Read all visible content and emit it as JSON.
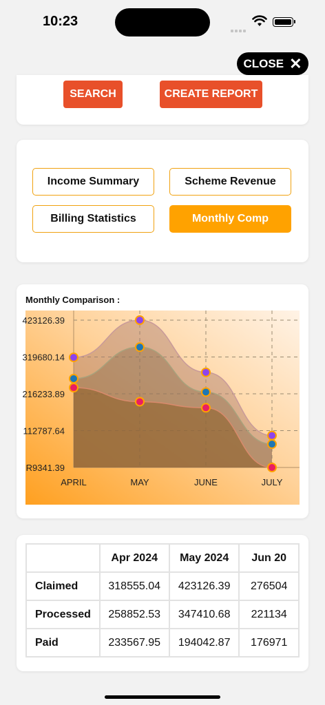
{
  "status_bar": {
    "time": "10:23"
  },
  "close_button": {
    "label": "CLOSE"
  },
  "actions": {
    "search_label": "SEARCH",
    "create_report_label": "CREATE REPORT"
  },
  "tabs": [
    {
      "label": "Income Summary",
      "active": false
    },
    {
      "label": "Scheme Revenue",
      "active": false
    },
    {
      "label": "Billing Statistics",
      "active": false
    },
    {
      "label": "Monthly Comp",
      "active": true
    }
  ],
  "chart_title": "Monthly Comparison :",
  "colors": {
    "accent": "#ffa200",
    "button": "#e8502a",
    "claimed": "#8e44ec",
    "processed": "#1f77b4",
    "paid": "#e91e63"
  },
  "chart_data": {
    "type": "area",
    "categories": [
      "APRIL",
      "MAY",
      "JUNE",
      "JULY"
    ],
    "y_ticks": [
      "423126.39",
      "319680.14",
      "216233.89",
      "112787.64",
      "R9341.39"
    ],
    "ylim": [
      9341.39,
      423126.39
    ],
    "grid": true,
    "series": [
      {
        "name": "Claimed",
        "values": [
          318555.04,
          423126.39,
          276504,
          99000
        ]
      },
      {
        "name": "Processed",
        "values": [
          258852.53,
          347410.68,
          221134,
          75000
        ]
      },
      {
        "name": "Paid",
        "values": [
          233567.95,
          194042.87,
          176971,
          9341.39
        ]
      }
    ]
  },
  "table": {
    "headers": [
      "",
      "Apr 2024",
      "May 2024",
      "Jun 20"
    ],
    "rows": [
      {
        "label": "Claimed",
        "values": [
          "318555.04",
          "423126.39",
          "276504"
        ]
      },
      {
        "label": "Processed",
        "values": [
          "258852.53",
          "347410.68",
          "221134"
        ]
      },
      {
        "label": "Paid",
        "values": [
          "233567.95",
          "194042.87",
          "176971"
        ]
      }
    ]
  }
}
